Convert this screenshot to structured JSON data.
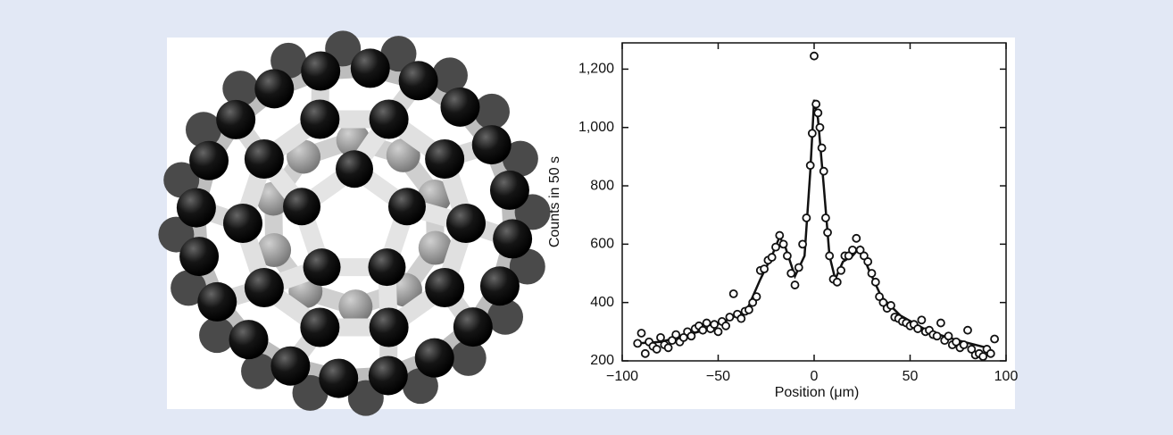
{
  "chart_data": {
    "type": "scatter",
    "xlabel": "Position (μm)",
    "ylabel": "Counts in 50 s",
    "xlim": [
      -100,
      100
    ],
    "ylim": [
      200,
      1290
    ],
    "xticks": [
      {
        "value": -100,
        "label": "−100"
      },
      {
        "value": -50,
        "label": "−50"
      },
      0,
      50,
      100
    ],
    "yticks": [
      200,
      400,
      600,
      800,
      {
        "value": 1000,
        "label": "1,000"
      },
      {
        "value": 1200,
        "label": "1,200"
      }
    ],
    "color": "#111111",
    "x": [
      -92,
      -90,
      -88,
      -86,
      -84,
      -82,
      -80,
      -78,
      -76,
      -74,
      -72,
      -70,
      -68,
      -66,
      -64,
      -62,
      -60,
      -58,
      -56,
      -54,
      -52,
      -50,
      -48,
      -46,
      -44,
      -42,
      -40,
      -38,
      -36,
      -34,
      -32,
      -30,
      -28,
      -26,
      -24,
      -22,
      -20,
      -18,
      -16,
      -14,
      -12,
      -10,
      -8,
      -6,
      -4,
      -2,
      -1,
      0,
      1,
      2,
      3,
      4,
      5,
      6,
      7,
      8,
      10,
      12,
      14,
      16,
      18,
      20,
      22,
      24,
      26,
      28,
      30,
      32,
      34,
      36,
      38,
      40,
      42,
      44,
      46,
      48,
      50,
      52,
      54,
      56,
      58,
      60,
      62,
      64,
      66,
      68,
      70,
      72,
      74,
      76,
      78,
      80,
      82,
      84,
      86,
      88,
      90,
      92,
      94
    ],
    "values": [
      260,
      295,
      225,
      265,
      250,
      240,
      280,
      255,
      245,
      270,
      290,
      265,
      280,
      300,
      285,
      310,
      320,
      305,
      330,
      310,
      325,
      300,
      335,
      320,
      350,
      430,
      360,
      345,
      370,
      375,
      400,
      420,
      510,
      515,
      545,
      555,
      590,
      630,
      600,
      560,
      500,
      460,
      520,
      600,
      690,
      870,
      980,
      1245,
      1080,
      1050,
      1000,
      930,
      850,
      690,
      640,
      560,
      480,
      470,
      510,
      560,
      560,
      580,
      620,
      580,
      560,
      540,
      500,
      470,
      420,
      400,
      380,
      390,
      350,
      345,
      335,
      330,
      320,
      325,
      310,
      340,
      300,
      305,
      290,
      285,
      330,
      270,
      285,
      255,
      265,
      245,
      255,
      305,
      240,
      220,
      225,
      215,
      240,
      225,
      275
    ],
    "fit": {
      "x": [
        -92,
        -80,
        -60,
        -45,
        -35,
        -28,
        -22,
        -18,
        -15,
        -10,
        -5,
        -2,
        0,
        2,
        5,
        8,
        11,
        15,
        20,
        24,
        28,
        35,
        45,
        60,
        75,
        90
      ],
      "values": [
        260,
        265,
        300,
        340,
        375,
        480,
        560,
        625,
        590,
        490,
        560,
        850,
        1095,
        1030,
        800,
        560,
        480,
        540,
        560,
        590,
        520,
        420,
        355,
        300,
        270,
        245
      ]
    }
  }
}
